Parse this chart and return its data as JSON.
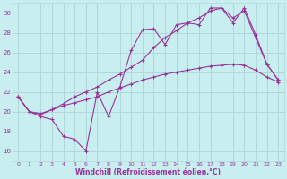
{
  "bg_color": "#c8eef0",
  "grid_color": "#b0d8dc",
  "line_color": "#993399",
  "xlabel": "Windchill (Refroidissement éolien,°C)",
  "xlabel_color": "#993399",
  "xlim": [
    -0.5,
    23.5
  ],
  "ylim": [
    15.0,
    31.0
  ],
  "yticks": [
    16,
    18,
    20,
    22,
    24,
    26,
    28,
    30
  ],
  "xticks": [
    0,
    1,
    2,
    3,
    4,
    5,
    6,
    7,
    8,
    9,
    10,
    11,
    12,
    13,
    14,
    15,
    16,
    17,
    18,
    19,
    20,
    21,
    22,
    23
  ],
  "line1_x": [
    0,
    1,
    2,
    3,
    4,
    5,
    6,
    7,
    8,
    9,
    10,
    11,
    12,
    13,
    14,
    15,
    16,
    17,
    18,
    19,
    20,
    21,
    22,
    23
  ],
  "line1_y": [
    21.5,
    20.0,
    19.5,
    19.2,
    17.5,
    17.2,
    16.0,
    22.0,
    19.5,
    22.5,
    26.2,
    28.3,
    28.4,
    26.8,
    28.8,
    29.0,
    28.8,
    30.5,
    30.5,
    29.0,
    30.5,
    27.8,
    24.8,
    23.2
  ],
  "line2_x": [
    0,
    1,
    2,
    3,
    4,
    5,
    6,
    7,
    8,
    9,
    10,
    11,
    12,
    13,
    14,
    15,
    16,
    17,
    18,
    19,
    20,
    21,
    22,
    23
  ],
  "line2_y": [
    21.5,
    20.0,
    19.8,
    20.2,
    20.6,
    20.9,
    21.2,
    21.5,
    22.0,
    22.4,
    22.8,
    23.2,
    23.5,
    23.8,
    24.0,
    24.2,
    24.4,
    24.6,
    24.7,
    24.8,
    24.7,
    24.2,
    23.5,
    23.0
  ],
  "line3_x": [
    0,
    1,
    2,
    3,
    4,
    5,
    6,
    7,
    8,
    9,
    10,
    11,
    12,
    13,
    14,
    15,
    16,
    17,
    18,
    19,
    20,
    21,
    22,
    23
  ],
  "line3_y": [
    21.5,
    20.0,
    19.7,
    20.2,
    20.8,
    21.5,
    22.0,
    22.5,
    23.2,
    23.8,
    24.5,
    25.2,
    26.5,
    27.5,
    28.2,
    29.0,
    29.5,
    30.2,
    30.5,
    29.5,
    30.2,
    27.5,
    24.8,
    23.2
  ]
}
